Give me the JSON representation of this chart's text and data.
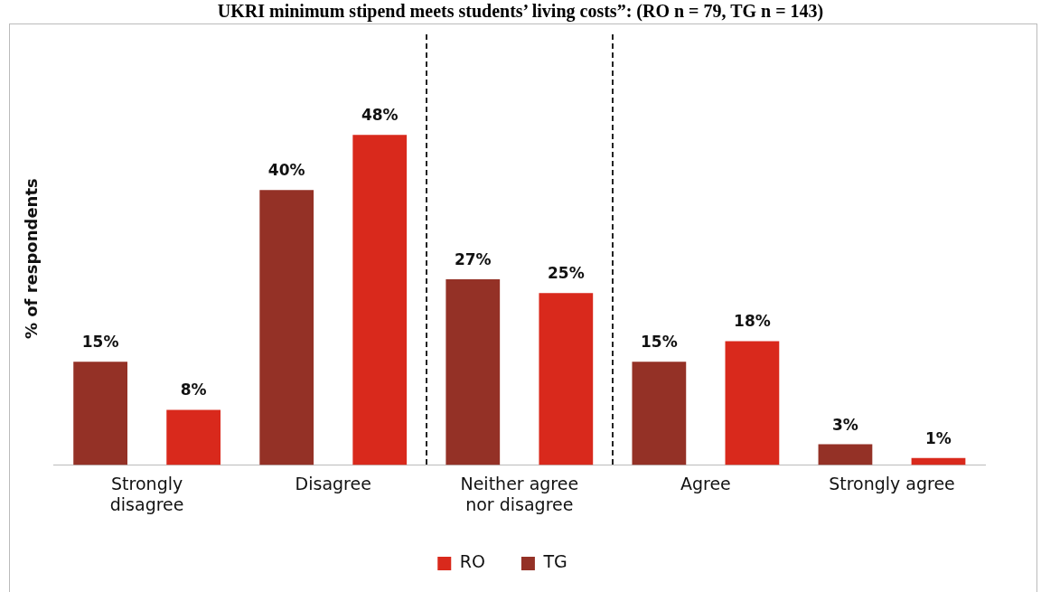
{
  "chart_data": {
    "type": "bar",
    "title": "UKRI minimum stipend meets students’ living costs”: (RO n = 79, TG n = 143)",
    "ylabel": "% of respondents",
    "categories": [
      "Strongly disagree",
      "Disagree",
      "Neither agree nor disagree",
      "Agree",
      "Strongly agree"
    ],
    "series": [
      {
        "name": "TG",
        "color": "#943126",
        "values": [
          15,
          40,
          27,
          15,
          3
        ],
        "value_labels": [
          "15%",
          "40%",
          "27%",
          "15%",
          "3%"
        ]
      },
      {
        "name": "RO",
        "color": "#d9291c",
        "values": [
          8,
          48,
          25,
          18,
          1
        ],
        "value_labels": [
          "8%",
          "48%",
          "25%",
          "18%",
          "1%"
        ]
      }
    ],
    "legend": "bottom",
    "grid": false
  }
}
